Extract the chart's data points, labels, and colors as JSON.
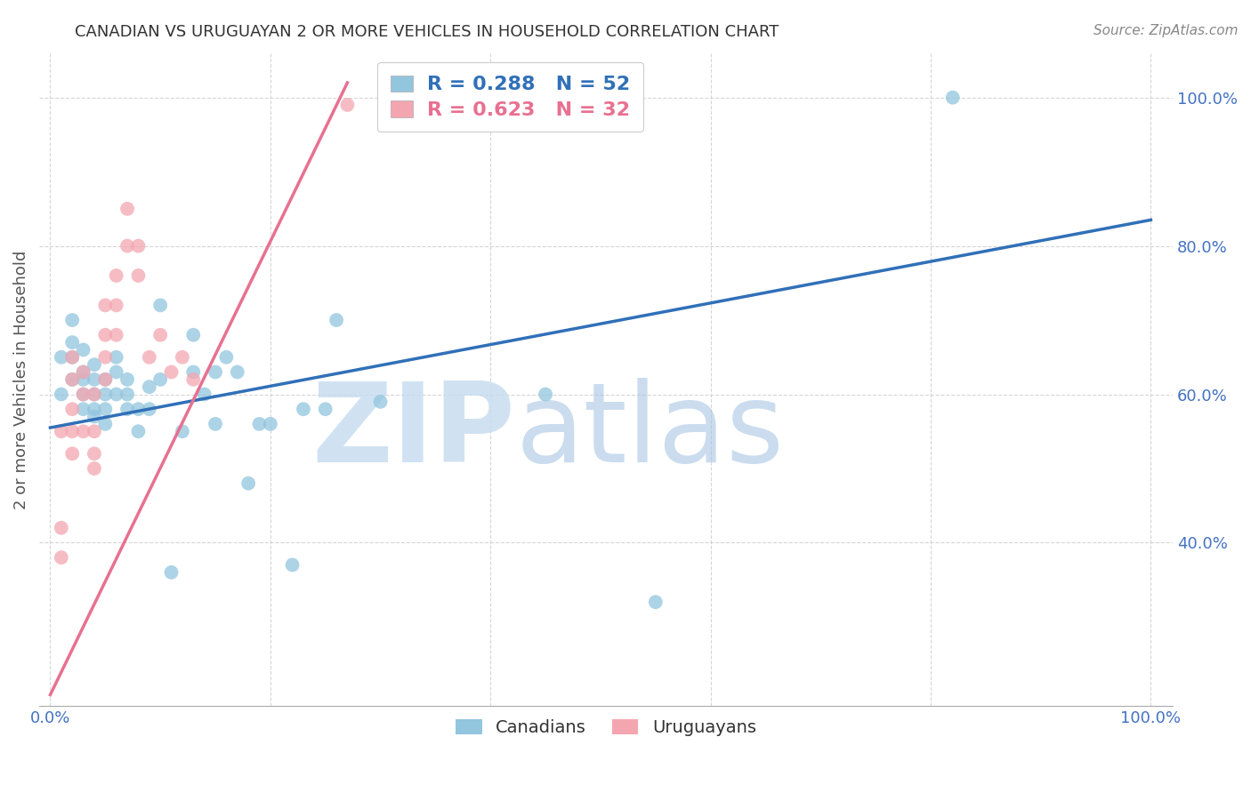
{
  "title": "CANADIAN VS URUGUAYAN 2 OR MORE VEHICLES IN HOUSEHOLD CORRELATION CHART",
  "source": "Source: ZipAtlas.com",
  "ylabel": "2 or more Vehicles in Household",
  "canadian_color": "#92c5de",
  "uruguayan_color": "#f4a6b0",
  "canadian_line_color": "#3070b8",
  "uruguayan_line_color": "#e87090",
  "R_canadian": 0.288,
  "N_canadian": 52,
  "R_uruguayan": 0.623,
  "N_uruguayan": 32,
  "watermark_zip": "ZIP",
  "watermark_atlas": "atlas",
  "background_color": "#ffffff",
  "grid_color": "#cccccc",
  "tick_color": "#4472c4",
  "canadians_x": [
    0.01,
    0.01,
    0.02,
    0.02,
    0.02,
    0.02,
    0.03,
    0.03,
    0.03,
    0.03,
    0.03,
    0.04,
    0.04,
    0.04,
    0.04,
    0.04,
    0.05,
    0.05,
    0.05,
    0.05,
    0.06,
    0.06,
    0.06,
    0.07,
    0.07,
    0.07,
    0.08,
    0.08,
    0.09,
    0.09,
    0.1,
    0.1,
    0.11,
    0.12,
    0.13,
    0.13,
    0.14,
    0.15,
    0.15,
    0.16,
    0.17,
    0.18,
    0.19,
    0.2,
    0.22,
    0.23,
    0.25,
    0.26,
    0.3,
    0.45,
    0.55,
    0.82
  ],
  "canadians_y": [
    0.6,
    0.65,
    0.62,
    0.65,
    0.67,
    0.7,
    0.58,
    0.6,
    0.62,
    0.63,
    0.66,
    0.57,
    0.58,
    0.6,
    0.62,
    0.64,
    0.56,
    0.58,
    0.6,
    0.62,
    0.6,
    0.63,
    0.65,
    0.58,
    0.6,
    0.62,
    0.55,
    0.58,
    0.58,
    0.61,
    0.72,
    0.62,
    0.36,
    0.55,
    0.63,
    0.68,
    0.6,
    0.63,
    0.56,
    0.65,
    0.63,
    0.48,
    0.56,
    0.56,
    0.37,
    0.58,
    0.58,
    0.7,
    0.59,
    0.6,
    0.32,
    1.0
  ],
  "uruguayans_x": [
    0.01,
    0.01,
    0.01,
    0.02,
    0.02,
    0.02,
    0.02,
    0.02,
    0.03,
    0.03,
    0.03,
    0.04,
    0.04,
    0.04,
    0.04,
    0.05,
    0.05,
    0.05,
    0.05,
    0.06,
    0.06,
    0.06,
    0.07,
    0.07,
    0.08,
    0.08,
    0.09,
    0.1,
    0.11,
    0.12,
    0.13,
    0.27
  ],
  "uruguayans_y": [
    0.38,
    0.42,
    0.55,
    0.52,
    0.55,
    0.58,
    0.62,
    0.65,
    0.55,
    0.6,
    0.63,
    0.5,
    0.52,
    0.55,
    0.6,
    0.62,
    0.65,
    0.68,
    0.72,
    0.68,
    0.72,
    0.76,
    0.8,
    0.85,
    0.8,
    0.76,
    0.65,
    0.68,
    0.63,
    0.65,
    0.62,
    0.99
  ],
  "can_line_x0": 0.0,
  "can_line_y0": 0.555,
  "can_line_x1": 1.0,
  "can_line_y1": 0.835,
  "uru_line_x0": 0.0,
  "uru_line_y0": 0.195,
  "uru_line_x1": 0.27,
  "uru_line_y1": 1.02,
  "xlim_min": -0.01,
  "xlim_max": 1.02,
  "ylim_min": 0.18,
  "ylim_max": 1.06,
  "yticks": [
    0.4,
    0.6,
    0.8,
    1.0
  ],
  "ytick_labels": [
    "40.0%",
    "60.0%",
    "80.0%",
    "100.0%"
  ],
  "xticks": [
    0.0,
    0.2,
    0.4,
    0.6,
    0.8,
    1.0
  ],
  "xtick_labels": [
    "0.0%",
    "",
    "",
    "",
    "",
    "100.0%"
  ]
}
